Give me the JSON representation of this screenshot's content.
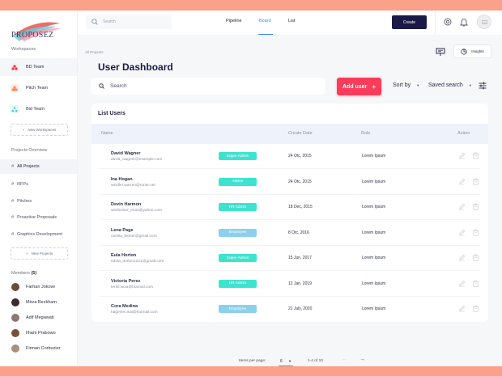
{
  "app": {
    "name": "PROPOSEZ"
  },
  "colors": {
    "accent_red": "#fd3b5a",
    "navy": "#1b1a47",
    "teal": "#3ee3cf",
    "sky": "#8bd0ec",
    "link_blue": "#3a8be8",
    "frame_bg": "#fba08a"
  },
  "sidebar": {
    "workspaces_label": "Workspaces",
    "workspaces": [
      {
        "label": "BD Team",
        "icon": "team-red-icon",
        "color": "#e8334a",
        "active": true
      },
      {
        "label": "Pitch Team",
        "icon": "team-orange-icon",
        "color": "#f58a62",
        "active": false
      },
      {
        "label": "Bid Team",
        "icon": "team-teal-icon",
        "color": "#2ec9b8",
        "active": false
      }
    ],
    "new_workspace_label": "New Workspaces",
    "projects_label": "Projects Overview",
    "projects": [
      {
        "label": "All Projects",
        "active": true
      },
      {
        "label": "RFPs",
        "active": false
      },
      {
        "label": "Pitches",
        "active": false
      },
      {
        "label": "Proactive Proposals",
        "active": false
      },
      {
        "label": "Graphics Development",
        "active": false
      }
    ],
    "new_project_label": "New Projects",
    "members_label": "Members",
    "members_count": "(5)",
    "members": [
      {
        "name": "Farhan Jokowi",
        "avatar_color": "#6b4a3a"
      },
      {
        "name": "Mirza Beckham",
        "avatar_color": "#3a2a2a"
      },
      {
        "name": "Adif Megawati",
        "avatar_color": "#8a7a70"
      },
      {
        "name": "Ilham Prabowo",
        "avatar_color": "#7a5038"
      },
      {
        "name": "Firman Corbuzier",
        "avatar_color": "#a89080"
      }
    ]
  },
  "topbar": {
    "search_placeholder": "Search",
    "tabs": [
      {
        "label": "Pipeline",
        "active": false
      },
      {
        "label": "Board",
        "active": true
      },
      {
        "label": "List",
        "active": false
      }
    ],
    "create_label": "Create",
    "icons": [
      "settings-icon",
      "bell-icon",
      "avatar"
    ]
  },
  "main": {
    "breadcrumb": "All Projects",
    "title": "User Dashboard",
    "insights_label": "Insights",
    "search_placeholder": "Search",
    "add_user_label": "Add user",
    "add_user_plus": "+",
    "sort_label": "Sort by",
    "saved_search_label": "Saved search"
  },
  "table": {
    "title": "List Users",
    "headers": {
      "name": "Name",
      "date": "Create Date",
      "role": "Role",
      "action": "Action"
    },
    "rows": [
      {
        "name": "David Wagner",
        "email": "david_wagner@example.com",
        "badge": "Super Admin",
        "badge_color": "#3ee3cf",
        "date": "24 Otc, 2015",
        "role": "Lorem Ipsum"
      },
      {
        "name": "Ina Hogan",
        "email": "windler.warren@runte.net",
        "badge": "Admin",
        "badge_color": "#3ee3cf",
        "date": "24 Otc, 2015",
        "role": "Lorem Ipsum"
      },
      {
        "name": "Devin Harmon",
        "email": "wintheiser_enos@yahoo.com",
        "badge": "HR Admin",
        "badge_color": "#3ee3cf",
        "date": "18 Dec, 2015",
        "role": "Lorem Ipsum"
      },
      {
        "name": "Lena Page",
        "email": "camila_ledner@gmail.com",
        "badge": "Employee",
        "badge_color": "#8bd0ec",
        "date": "8 Otc, 2016",
        "role": "Lorem Ipsum"
      },
      {
        "name": "Eula Horton",
        "email": "edula_dorton1221@gmail.com",
        "badge": "Super Admin",
        "badge_color": "#3ee3cf",
        "date": "15 Jun, 2017",
        "role": "Lorem Ipsum"
      },
      {
        "name": "Victoria Perez",
        "email": "terrill.wiza@hotmail.com",
        "badge": "HR Admin",
        "badge_color": "#3ee3cf",
        "date": "12 Jan, 2019",
        "role": "Lorem Ipsum"
      },
      {
        "name": "Cora Medina",
        "email": "hagenes.isai@hotmail.com",
        "badge": "Employee",
        "badge_color": "#8bd0ec",
        "date": "21 July, 2020",
        "role": "Lorem Ipsum"
      }
    ]
  },
  "pagination": {
    "items_per_page_label": "Items per page:",
    "per_page_value": "6",
    "range": "1-4 of 10",
    "prev": "←",
    "next": "→"
  }
}
